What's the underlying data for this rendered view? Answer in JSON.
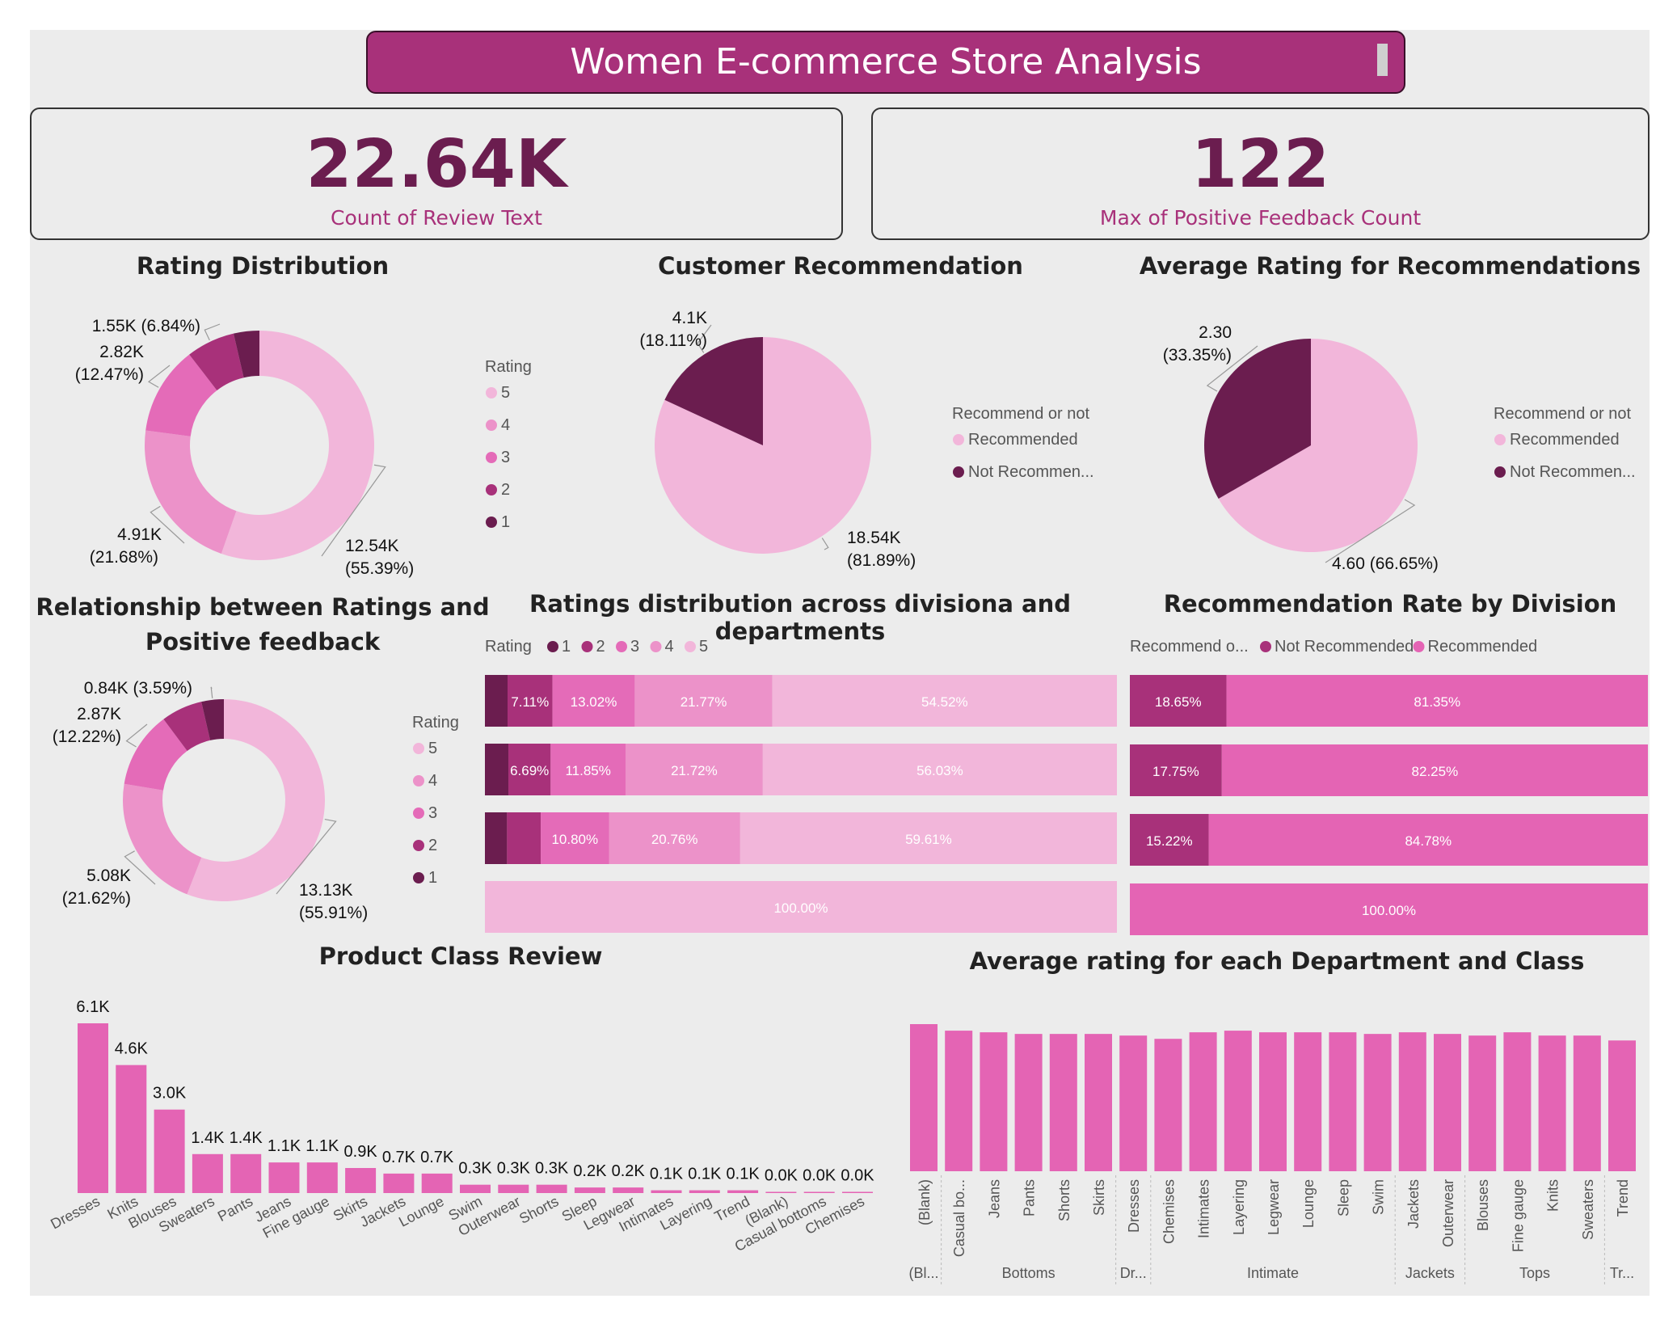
{
  "header": {
    "title": "Women E-commerce Store Analysis"
  },
  "kpis": [
    {
      "value": "22.64K",
      "label": "Count of Review Text"
    },
    {
      "value": "122",
      "label": "Max of Positive Feedback Count"
    }
  ],
  "colors": {
    "r5": "#f2b6da",
    "r4": "#ec92c9",
    "r3": "#e46bb8",
    "r2": "#a8317a",
    "r1": "#6b1d4f",
    "recommended": "#e464b4",
    "not_recommended": "#a8317a"
  },
  "chart_data": [
    {
      "id": "rating_dist",
      "type": "pie",
      "title": "Rating Distribution",
      "legend_title": "Rating",
      "legend": [
        "5",
        "4",
        "3",
        "2",
        "1"
      ],
      "slices": [
        {
          "label": "5",
          "value": 12540,
          "text1": "12.54K",
          "text2": "(55.39%)"
        },
        {
          "label": "4",
          "value": 4910,
          "text1": "4.91K",
          "text2": "(21.68%)"
        },
        {
          "label": "3",
          "value": 2820,
          "text1": "2.82K",
          "text2": "(12.47%)"
        },
        {
          "label": "2",
          "value": 1550,
          "text1": "1.55K (6.84%)",
          "text2": ""
        },
        {
          "label": "1",
          "value": 820,
          "text1": "",
          "text2": ""
        }
      ]
    },
    {
      "id": "cust_rec",
      "type": "pie",
      "title": "Customer Recommendation",
      "legend_title": "Recommend or not",
      "legend": [
        "Recommended",
        "Not Recommen..."
      ],
      "slices": [
        {
          "label": "Recommended",
          "value": 18540,
          "text1": "18.54K",
          "text2": "(81.89%)"
        },
        {
          "label": "Not Recommended",
          "value": 4100,
          "text1": "4.1K",
          "text2": "(18.11%)"
        }
      ]
    },
    {
      "id": "avg_rating_rec",
      "type": "pie",
      "title": "Average Rating for Recommendations",
      "legend_title": "Recommend or not",
      "legend": [
        "Recommended",
        "Not Recommen..."
      ],
      "slices": [
        {
          "label": "Recommended",
          "value": 4.6,
          "text1": "4.60 (66.65%)",
          "text2": ""
        },
        {
          "label": "Not Recommended",
          "value": 2.3,
          "text1": "2.30",
          "text2": "(33.35%)"
        }
      ]
    },
    {
      "id": "rating_feedback",
      "type": "pie",
      "title": "Relationship between Ratings and Positive feedback",
      "title_lines": [
        "Relationship between Ratings and",
        "Positive feedback"
      ],
      "legend_title": "Rating",
      "legend": [
        "5",
        "4",
        "3",
        "2",
        "1"
      ],
      "slices": [
        {
          "label": "5",
          "value": 13130,
          "text1": "13.13K",
          "text2": "(55.91%)"
        },
        {
          "label": "4",
          "value": 5080,
          "text1": "5.08K",
          "text2": "(21.62%)"
        },
        {
          "label": "3",
          "value": 2870,
          "text1": "2.87K",
          "text2": "(12.22%)"
        },
        {
          "label": "2",
          "value": 1550,
          "text1": "",
          "text2": ""
        },
        {
          "label": "1",
          "value": 840,
          "text1": "0.84K (3.59%)",
          "text2": ""
        }
      ]
    },
    {
      "id": "ratings_div",
      "type": "bar",
      "stacked": "100%",
      "title": "Ratings distribution across divisiona and departments",
      "legend_title": "Rating",
      "legend": [
        "1",
        "2",
        "3",
        "4",
        "5"
      ],
      "rows": [
        [
          3.58,
          7.11,
          13.02,
          21.77,
          54.52
        ],
        [
          3.71,
          6.69,
          11.85,
          21.72,
          56.03
        ],
        [
          3.5,
          5.33,
          10.8,
          20.76,
          59.61
        ],
        [
          0,
          0,
          0,
          0,
          100.0
        ]
      ],
      "labels": [
        [
          "",
          "7.11%",
          "13.02%",
          "21.77%",
          "54.52%"
        ],
        [
          "",
          "6.69%",
          "11.85%",
          "21.72%",
          "56.03%"
        ],
        [
          "",
          "",
          "10.80%",
          "20.76%",
          "59.61%"
        ],
        [
          "",
          "",
          "",
          "",
          "100.00%"
        ]
      ]
    },
    {
      "id": "rec_div",
      "type": "bar",
      "stacked": "100%",
      "title": "Recommendation Rate by Division",
      "legend_title": "Recommend o...",
      "legend": [
        "Not Recommended",
        "Recommended"
      ],
      "rows": [
        [
          18.65,
          81.35
        ],
        [
          17.75,
          82.25
        ],
        [
          15.22,
          84.78
        ],
        [
          0,
          100.0
        ]
      ],
      "labels": [
        [
          "18.65%",
          "81.35%"
        ],
        [
          "17.75%",
          "82.25%"
        ],
        [
          "15.22%",
          "84.78%"
        ],
        [
          "",
          "100.00%"
        ]
      ]
    },
    {
      "id": "class_review",
      "type": "bar",
      "title": "Product Class Review",
      "categories": [
        "Dresses",
        "Knits",
        "Blouses",
        "Sweaters",
        "Pants",
        "Jeans",
        "Fine gauge",
        "Skirts",
        "Jackets",
        "Lounge",
        "Swim",
        "Outerwear",
        "Shorts",
        "Sleep",
        "Legwear",
        "Intimates",
        "Layering",
        "Trend",
        "(Blank)",
        "Casual bottoms",
        "Chemises"
      ],
      "values": [
        6.1,
        4.6,
        3.0,
        1.4,
        1.4,
        1.1,
        1.1,
        0.9,
        0.7,
        0.7,
        0.3,
        0.3,
        0.3,
        0.2,
        0.2,
        0.1,
        0.1,
        0.1,
        0.0,
        0.0,
        0.0
      ],
      "value_labels": [
        "6.1K",
        "4.6K",
        "3.0K",
        "1.4K",
        "1.4K",
        "1.1K",
        "1.1K",
        "0.9K",
        "0.7K",
        "0.7K",
        "0.3K",
        "0.3K",
        "0.3K",
        "0.2K",
        "0.2K",
        "0.1K",
        "0.1K",
        "0.1K",
        "0.0K",
        "0.0K",
        "0.0K"
      ]
    },
    {
      "id": "avg_dept_class",
      "type": "bar",
      "title": "Average rating for each Department and Class",
      "categories": [
        "(Blank)",
        "Casual bo...",
        "Jeans",
        "Pants",
        "Shorts",
        "Skirts",
        "Dresses",
        "Chemises",
        "Intimates",
        "Layering",
        "Legwear",
        "Lounge",
        "Sleep",
        "Swim",
        "Jackets",
        "Outerwear",
        "Blouses",
        "Fine gauge",
        "Knits",
        "Sweaters",
        "Trend"
      ],
      "values": [
        4.5,
        4.3,
        4.25,
        4.2,
        4.2,
        4.2,
        4.15,
        4.05,
        4.25,
        4.3,
        4.25,
        4.25,
        4.25,
        4.2,
        4.25,
        4.2,
        4.15,
        4.25,
        4.15,
        4.15,
        4.0
      ],
      "groups": [
        {
          "label": "(Bl...",
          "span": 1
        },
        {
          "label": "Bottoms",
          "span": 5
        },
        {
          "label": "Dr...",
          "span": 1
        },
        {
          "label": "Intimate",
          "span": 7
        },
        {
          "label": "Jackets",
          "span": 2
        },
        {
          "label": "Tops",
          "span": 4
        },
        {
          "label": "Tr...",
          "span": 1
        }
      ]
    }
  ]
}
